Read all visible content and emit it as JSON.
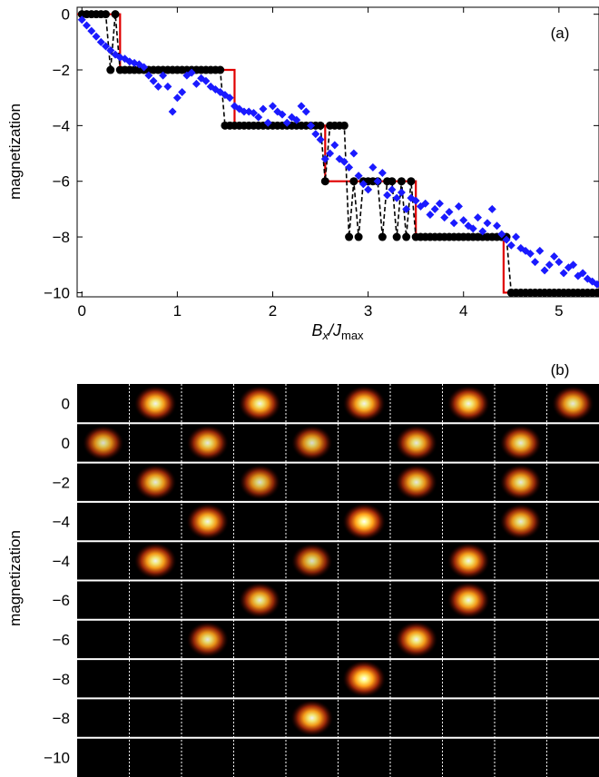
{
  "chart_data": [
    {
      "type": "line",
      "panel_label": "(a)",
      "xlabel": {
        "main": "B",
        "sub1": "x",
        "slash": "/J",
        "sub2": "max"
      },
      "ylabel": "magnetization",
      "xlim": [
        -0.05,
        5.42
      ],
      "ylim": [
        -10.15,
        0.25
      ],
      "xticks": [
        0,
        1,
        2,
        3,
        4,
        5
      ],
      "yticks": [
        0,
        -2,
        -4,
        -6,
        -8,
        -10
      ],
      "ytick_labels": [
        "0",
        "−2",
        "−4",
        "−6",
        "−8",
        "−10"
      ],
      "grid": false,
      "colors": {
        "red": "#e00000",
        "black": "#000000",
        "blue": "#1a1aff"
      },
      "series": [
        {
          "style": "red-step",
          "x": [
            -0.05,
            0.4,
            0.4,
            1.6,
            1.6,
            2.55,
            2.55,
            3.5,
            3.5,
            4.42,
            4.42,
            5.42
          ],
          "y": [
            0,
            0,
            -2,
            -2,
            -4,
            -4,
            -6,
            -6,
            -8,
            -8,
            -10,
            -10
          ]
        },
        {
          "style": "black-dashed-points",
          "x": [
            0.0,
            0.05,
            0.1,
            0.15,
            0.2,
            0.25,
            0.3,
            0.35,
            0.4,
            0.45,
            0.5,
            0.55,
            0.6,
            0.65,
            0.7,
            0.75,
            0.8,
            0.85,
            0.9,
            0.95,
            1.0,
            1.05,
            1.1,
            1.15,
            1.2,
            1.25,
            1.3,
            1.35,
            1.4,
            1.45,
            1.5,
            1.55,
            1.6,
            1.65,
            1.7,
            1.75,
            1.8,
            1.85,
            1.9,
            1.95,
            2.0,
            2.05,
            2.1,
            2.15,
            2.2,
            2.25,
            2.3,
            2.35,
            2.4,
            2.45,
            2.5,
            2.55,
            2.6,
            2.65,
            2.7,
            2.75,
            2.8,
            2.85,
            2.9,
            2.95,
            3.0,
            3.05,
            3.1,
            3.15,
            3.2,
            3.25,
            3.3,
            3.35,
            3.4,
            3.45,
            3.5,
            3.55,
            3.6,
            3.65,
            3.7,
            3.75,
            3.8,
            3.85,
            3.9,
            3.95,
            4.0,
            4.05,
            4.1,
            4.15,
            4.2,
            4.25,
            4.3,
            4.35,
            4.4,
            4.45,
            4.5,
            4.55,
            4.6,
            4.65,
            4.7,
            4.75,
            4.8,
            4.85,
            4.9,
            4.95,
            5.0,
            5.05,
            5.1,
            5.15,
            5.2,
            5.25,
            5.3,
            5.35,
            5.4
          ],
          "y": [
            0,
            0,
            0,
            0,
            0,
            0,
            -2,
            0,
            -2,
            -2,
            -2,
            -2,
            -2,
            -2,
            -2,
            -2,
            -2,
            -2,
            -2,
            -2,
            -2,
            -2,
            -2,
            -2,
            -2,
            -2,
            -2,
            -2,
            -2,
            -2,
            -4,
            -4,
            -4,
            -4,
            -4,
            -4,
            -4,
            -4,
            -4,
            -4,
            -4,
            -4,
            -4,
            -4,
            -4,
            -4,
            -4,
            -4,
            -4,
            -4,
            -4,
            -6,
            -4,
            -4,
            -4,
            -4,
            -8,
            -6,
            -8,
            -6,
            -6,
            -6,
            -6,
            -8,
            -6,
            -6,
            -8,
            -6,
            -8,
            -6,
            -8,
            -8,
            -8,
            -8,
            -8,
            -8,
            -8,
            -8,
            -8,
            -8,
            -8,
            -8,
            -8,
            -8,
            -8,
            -8,
            -8,
            -8,
            -8,
            -8,
            -10,
            -10,
            -10,
            -10,
            -10,
            -10,
            -10,
            -10,
            -10,
            -10,
            -10,
            -10,
            -10,
            -10,
            -10,
            -10,
            -10,
            -10,
            -10
          ]
        },
        {
          "style": "blue-diamonds",
          "x": [
            0.0,
            0.05,
            0.1,
            0.15,
            0.2,
            0.25,
            0.3,
            0.35,
            0.4,
            0.45,
            0.5,
            0.55,
            0.6,
            0.65,
            0.7,
            0.75,
            0.8,
            0.85,
            0.9,
            0.95,
            1.0,
            1.05,
            1.1,
            1.15,
            1.2,
            1.25,
            1.3,
            1.35,
            1.4,
            1.45,
            1.5,
            1.55,
            1.6,
            1.65,
            1.7,
            1.75,
            1.8,
            1.85,
            1.9,
            1.95,
            2.0,
            2.05,
            2.1,
            2.15,
            2.2,
            2.25,
            2.3,
            2.35,
            2.4,
            2.45,
            2.5,
            2.55,
            2.6,
            2.65,
            2.7,
            2.75,
            2.8,
            2.85,
            2.9,
            2.95,
            3.0,
            3.05,
            3.1,
            3.15,
            3.2,
            3.25,
            3.3,
            3.35,
            3.4,
            3.45,
            3.5,
            3.55,
            3.6,
            3.65,
            3.7,
            3.75,
            3.8,
            3.85,
            3.9,
            3.95,
            4.0,
            4.05,
            4.1,
            4.15,
            4.2,
            4.25,
            4.3,
            4.35,
            4.4,
            4.45,
            4.5,
            4.55,
            4.6,
            4.65,
            4.7,
            4.75,
            4.8,
            4.85,
            4.9,
            4.95,
            5.0,
            5.05,
            5.1,
            5.15,
            5.2,
            5.25,
            5.3,
            5.35,
            5.4
          ],
          "y": [
            -0.2,
            -0.4,
            -0.6,
            -0.8,
            -1.0,
            -1.15,
            -1.3,
            -1.45,
            -1.55,
            -1.6,
            -1.7,
            -1.75,
            -1.8,
            -1.9,
            -2.2,
            -2.4,
            -2.6,
            -2.2,
            -2.6,
            -3.5,
            -3.0,
            -2.8,
            -2.2,
            -2.1,
            -2.5,
            -2.3,
            -2.4,
            -2.6,
            -2.7,
            -2.8,
            -2.9,
            -3.0,
            -3.3,
            -3.4,
            -3.5,
            -3.5,
            -3.55,
            -3.7,
            -3.4,
            -3.9,
            -3.3,
            -3.5,
            -3.6,
            -3.9,
            -3.7,
            -3.8,
            -3.3,
            -3.5,
            -4.0,
            -4.3,
            -4.5,
            -5.2,
            -5.0,
            -4.7,
            -5.2,
            -5.3,
            -5.5,
            -5.0,
            -5.8,
            -6.1,
            -6.3,
            -5.5,
            -6.0,
            -5.7,
            -6.5,
            -6.3,
            -6.6,
            -6.4,
            -7.0,
            -6.6,
            -6.7,
            -6.9,
            -6.8,
            -7.2,
            -7.0,
            -6.8,
            -7.3,
            -7.1,
            -7.5,
            -6.9,
            -7.4,
            -7.6,
            -7.7,
            -7.3,
            -7.8,
            -7.5,
            -7.0,
            -7.6,
            -7.9,
            -8.1,
            -8.3,
            -8.0,
            -8.4,
            -8.5,
            -8.6,
            -8.9,
            -8.5,
            -9.2,
            -9.0,
            -8.7,
            -8.9,
            -9.3,
            -9.1,
            -9.0,
            -9.4,
            -9.3,
            -9.5,
            -9.6,
            -9.7
          ]
        }
      ]
    },
    {
      "type": "heatmap",
      "panel_label": "(b)",
      "ylabel": "magnetization",
      "row_labels": [
        "0",
        "0",
        "−2",
        "−4",
        "−4",
        "−6",
        "−6",
        "−8",
        "−8",
        "−10"
      ],
      "columns": 10,
      "grid": false,
      "colors": {
        "background": "#000000",
        "row_separator": "#ffffff",
        "column_separator": "#ffffff"
      },
      "spots": [
        [
          {
            "col": 1,
            "level": 0.95
          },
          {
            "col": 3,
            "level": 0.95
          },
          {
            "col": 5,
            "level": 0.95
          },
          {
            "col": 7,
            "level": 0.95
          },
          {
            "col": 9,
            "level": 0.9
          }
        ],
        [
          {
            "col": 0,
            "level": 0.85
          },
          {
            "col": 2,
            "level": 0.9
          },
          {
            "col": 4,
            "level": 0.85
          },
          {
            "col": 6,
            "level": 0.9
          },
          {
            "col": 8,
            "level": 0.9
          }
        ],
        [
          {
            "col": 1,
            "level": 0.9
          },
          {
            "col": 3,
            "level": 0.85
          },
          {
            "col": 6,
            "level": 0.9
          },
          {
            "col": 8,
            "level": 0.9
          }
        ],
        [
          {
            "col": 2,
            "level": 0.95
          },
          {
            "col": 5,
            "level": 1.0
          },
          {
            "col": 8,
            "level": 0.9
          }
        ],
        [
          {
            "col": 1,
            "level": 0.95
          },
          {
            "col": 4,
            "level": 0.85
          },
          {
            "col": 7,
            "level": 0.95
          }
        ],
        [
          {
            "col": 3,
            "level": 0.9
          },
          {
            "col": 7,
            "level": 0.95
          }
        ],
        [
          {
            "col": 2,
            "level": 0.9
          },
          {
            "col": 6,
            "level": 0.95
          }
        ],
        [
          {
            "col": 5,
            "level": 1.0
          }
        ],
        [
          {
            "col": 4,
            "level": 0.95
          }
        ],
        []
      ]
    }
  ]
}
